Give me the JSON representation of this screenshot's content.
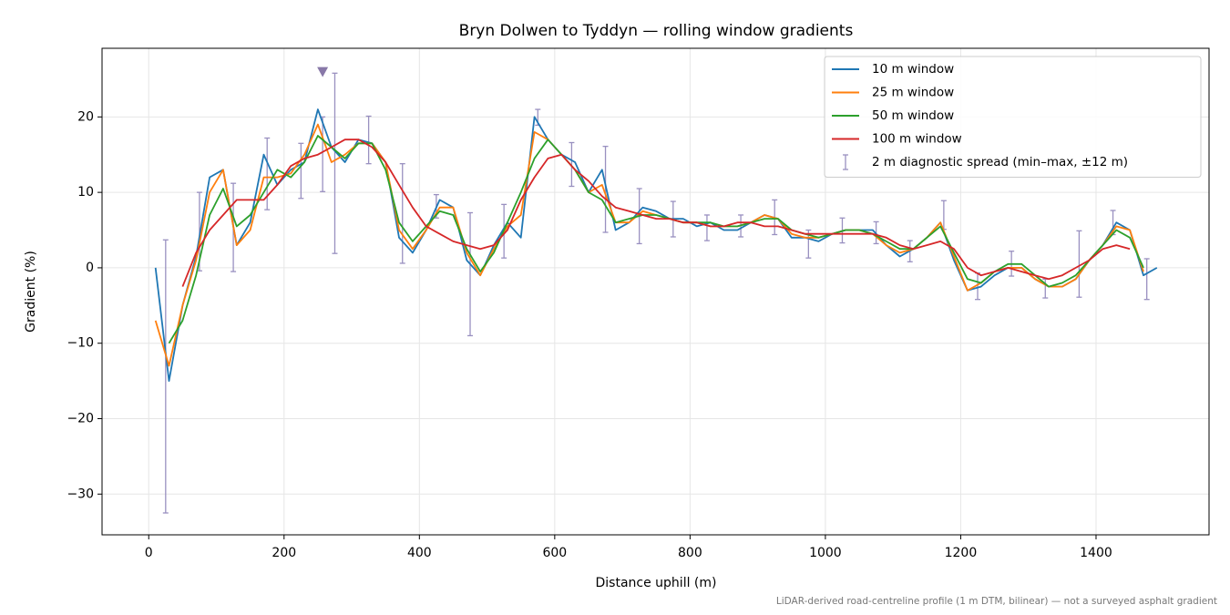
{
  "chart_data": {
    "type": "line",
    "title": "Bryn Dolwen to Tyddyn — rolling window gradients",
    "x_label": "Distance uphill (m)",
    "y_label": "Gradient (%)",
    "footnote": "LiDAR-derived road-centreline profile (1 m DTM, bilinear) — not a surveyed asphalt gradient",
    "xlim": [
      -69,
      1567
    ],
    "ylim": [
      -35.4,
      29.1
    ],
    "xticks": [
      0,
      200,
      400,
      600,
      800,
      1000,
      1200,
      1400
    ],
    "yticks": [
      {
        "value": -30,
        "label": "−30"
      },
      {
        "value": -20,
        "label": "−20"
      },
      {
        "value": -10,
        "label": "−10"
      },
      0,
      10,
      20
    ],
    "grid": true,
    "legend": "upper right",
    "x": [
      10,
      30,
      50,
      70,
      90,
      110,
      130,
      150,
      170,
      190,
      210,
      230,
      250,
      270,
      290,
      310,
      330,
      350,
      370,
      390,
      410,
      430,
      450,
      470,
      490,
      510,
      530,
      550,
      570,
      590,
      610,
      630,
      650,
      670,
      690,
      710,
      730,
      750,
      770,
      790,
      810,
      830,
      850,
      870,
      890,
      910,
      930,
      950,
      970,
      990,
      1010,
      1030,
      1050,
      1070,
      1090,
      1110,
      1130,
      1150,
      1170,
      1190,
      1210,
      1230,
      1250,
      1270,
      1290,
      1310,
      1330,
      1350,
      1370,
      1390,
      1410,
      1430,
      1450,
      1470,
      1490
    ],
    "series": [
      {
        "name": "10 m window",
        "color": "#1f77b4",
        "values": [
          0,
          -15,
          -5,
          1.5,
          12,
          13,
          3,
          6,
          15,
          11,
          13,
          14,
          21,
          16,
          14,
          17,
          16.5,
          14,
          4,
          2,
          5,
          9,
          8,
          1,
          -1,
          3,
          6,
          4,
          20,
          17,
          15,
          14,
          10,
          13,
          5,
          6,
          8,
          7.5,
          6.5,
          6.5,
          5.5,
          6,
          5,
          5,
          6,
          7,
          6.5,
          4,
          4,
          3.5,
          4.5,
          5,
          5,
          5,
          3,
          1.5,
          2.5,
          4,
          6,
          1,
          -3,
          -2.5,
          -1,
          0,
          0,
          -1.5,
          -2.5,
          -2.5,
          -1.5,
          1,
          3,
          6,
          5,
          -1,
          0
        ]
      },
      {
        "name": "25 m window",
        "color": "#ff7f0e",
        "values": [
          -7,
          -13,
          -5,
          1,
          10,
          13,
          3,
          5,
          12,
          12,
          12.5,
          15,
          19,
          14,
          15,
          16.5,
          16.5,
          14,
          5,
          2.5,
          5,
          8,
          8,
          2,
          -1,
          2.5,
          5.5,
          7,
          18,
          17,
          15,
          13,
          10,
          11,
          6,
          6,
          7.5,
          7,
          6.5,
          6,
          6,
          5.5,
          5.5,
          5.5,
          6,
          7,
          6.5,
          4.5,
          4,
          4,
          4.5,
          5,
          5,
          4.5,
          3,
          2,
          2.5,
          4,
          6,
          1.5,
          -3,
          -2,
          -0.5,
          0,
          0,
          -1.5,
          -2.5,
          -2.5,
          -1.5,
          1,
          3,
          5.5,
          5,
          -0.5,
          null
        ]
      },
      {
        "name": "50 m window",
        "color": "#2ca02c",
        "values": [
          null,
          -10,
          -7,
          -1,
          7,
          10.5,
          5.5,
          7,
          10,
          13,
          12,
          14,
          17.5,
          16,
          14.5,
          16.5,
          16.5,
          13,
          6,
          3.5,
          5.5,
          7.5,
          7,
          2.5,
          -0.5,
          2,
          6,
          10,
          14.5,
          17,
          15,
          13,
          10,
          9,
          6,
          6.5,
          7,
          7,
          6.5,
          6,
          6,
          6,
          5.5,
          5.5,
          6,
          6.5,
          6.5,
          5,
          4.5,
          4,
          4.5,
          5,
          5,
          4.5,
          3.5,
          2.5,
          2.5,
          4,
          5.5,
          2,
          -1.5,
          -2,
          -0.5,
          0.5,
          0.5,
          -1,
          -2.5,
          -2,
          -1,
          1,
          3,
          5,
          4,
          0,
          null
        ]
      },
      {
        "name": "100 m window",
        "color": "#d62728",
        "values": [
          null,
          null,
          -2.5,
          2,
          5,
          7,
          9,
          9,
          9,
          11,
          13.5,
          14.5,
          15,
          16,
          17,
          17,
          16,
          14,
          11,
          8,
          5.5,
          4.5,
          3.5,
          3,
          2.5,
          3,
          5,
          9,
          12,
          14.5,
          15,
          13,
          11.5,
          9.5,
          8,
          7.5,
          7,
          6.5,
          6.5,
          6,
          6,
          5.5,
          5.5,
          6,
          6,
          5.5,
          5.5,
          5,
          4.5,
          4.5,
          4.5,
          4.5,
          4.5,
          4.5,
          4,
          3,
          2.5,
          3,
          3.5,
          2.5,
          0,
          -1,
          -0.5,
          0,
          -0.5,
          -1,
          -1.5,
          -1,
          0,
          1,
          2.5,
          3,
          2.5,
          null,
          null
        ]
      }
    ],
    "error_bars": {
      "name": "2 m diagnostic spread (min–max, ±12 m)",
      "color": "#9990c0",
      "x": [
        25,
        75,
        125,
        175,
        225,
        257,
        275,
        325,
        375,
        425,
        475,
        525,
        575,
        625,
        675,
        725,
        775,
        825,
        875,
        925,
        975,
        1025,
        1075,
        1125,
        1175,
        1225,
        1275,
        1325,
        1375,
        1425,
        1475
      ],
      "low": [
        -32.5,
        -0.4,
        -0.5,
        7.7,
        9.2,
        10.1,
        1.9,
        13.8,
        0.6,
        6.6,
        -9,
        1.3,
        18.9,
        10.8,
        4.7,
        3.2,
        4.1,
        3.6,
        4.1,
        4.4,
        1.3,
        3.3,
        3.2,
        0.8,
        5.1,
        -4.2,
        -1.1,
        -4,
        -3.9,
        4.4,
        -4.2
      ],
      "high": [
        3.7,
        10,
        11.2,
        17.2,
        16.5,
        20,
        25.8,
        20.1,
        13.8,
        9.7,
        7.3,
        8.4,
        21,
        16.6,
        16.1,
        10.5,
        8.8,
        7,
        7,
        9,
        5,
        6.6,
        6.1,
        3.6,
        8.9,
        -0.7,
        2.2,
        -1.5,
        4.9,
        7.6,
        1.2
      ]
    },
    "peak_marker": {
      "x": 257,
      "y": 26,
      "color": "#8878a8"
    }
  }
}
